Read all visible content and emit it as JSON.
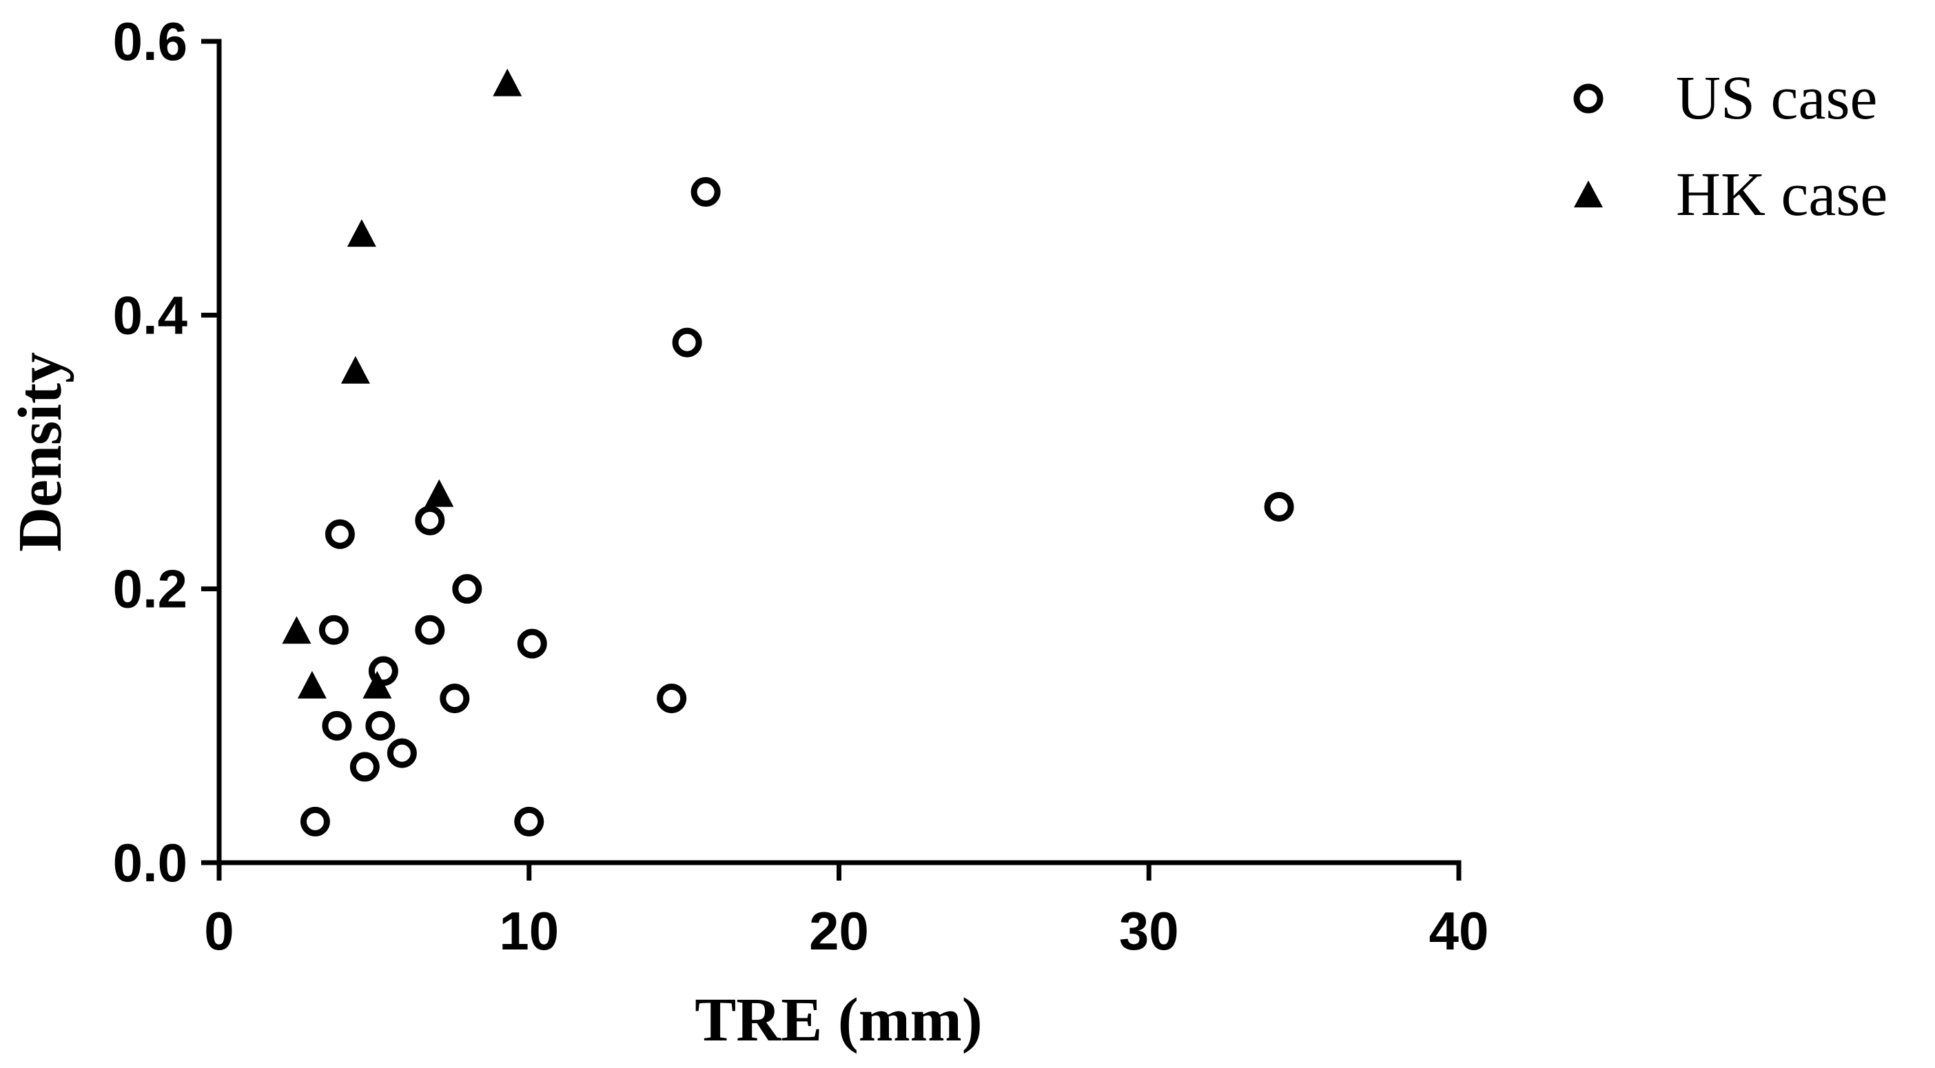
{
  "chart_data": {
    "type": "scatter",
    "xlabel": "TRE (mm)",
    "ylabel": "Density",
    "xlim": [
      0,
      40
    ],
    "ylim": [
      0,
      0.6
    ],
    "x_ticks": [
      "0",
      "10",
      "20",
      "30",
      "40"
    ],
    "y_ticks": [
      "0.0",
      "0.2",
      "0.4",
      "0.6"
    ],
    "grid": false,
    "legend_position": "top-right",
    "series": [
      {
        "name": "US case",
        "marker": "open-circle",
        "color": "#000000",
        "points": [
          {
            "x": 3.1,
            "y": 0.03
          },
          {
            "x": 10.0,
            "y": 0.03
          },
          {
            "x": 4.7,
            "y": 0.07
          },
          {
            "x": 5.9,
            "y": 0.08
          },
          {
            "x": 3.8,
            "y": 0.1
          },
          {
            "x": 5.2,
            "y": 0.1
          },
          {
            "x": 7.6,
            "y": 0.12
          },
          {
            "x": 14.6,
            "y": 0.12
          },
          {
            "x": 5.3,
            "y": 0.14
          },
          {
            "x": 10.1,
            "y": 0.16
          },
          {
            "x": 3.7,
            "y": 0.17
          },
          {
            "x": 6.8,
            "y": 0.17
          },
          {
            "x": 8.0,
            "y": 0.2
          },
          {
            "x": 3.9,
            "y": 0.24
          },
          {
            "x": 6.8,
            "y": 0.25
          },
          {
            "x": 34.2,
            "y": 0.26
          },
          {
            "x": 15.1,
            "y": 0.38
          },
          {
            "x": 15.7,
            "y": 0.49
          }
        ]
      },
      {
        "name": "HK case",
        "marker": "filled-triangle",
        "color": "#000000",
        "points": [
          {
            "x": 2.5,
            "y": 0.17
          },
          {
            "x": 3.0,
            "y": 0.13
          },
          {
            "x": 5.1,
            "y": 0.13
          },
          {
            "x": 7.1,
            "y": 0.27
          },
          {
            "x": 4.4,
            "y": 0.36
          },
          {
            "x": 4.6,
            "y": 0.46
          },
          {
            "x": 9.3,
            "y": 0.57
          }
        ]
      }
    ]
  }
}
